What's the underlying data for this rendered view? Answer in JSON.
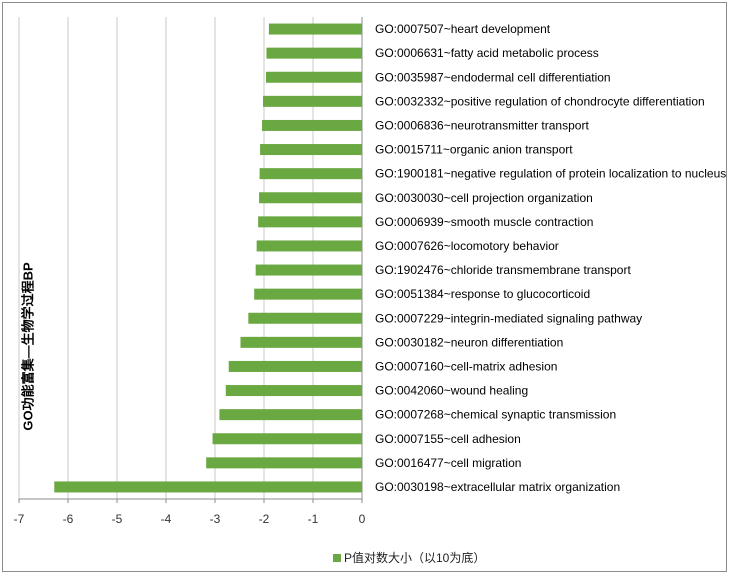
{
  "chart_data": {
    "type": "bar",
    "orientation": "horizontal",
    "ylabel": "GO功能富集—生物学过程BP",
    "xlabel": "",
    "xlim": [
      -7,
      0
    ],
    "xticks": [
      "-7",
      "-6",
      "-5",
      "-4",
      "-3",
      "-2",
      "-1",
      "0"
    ],
    "grid": true,
    "legend_position": "bottom",
    "series": [
      {
        "name": "P值对数大小（以10为底）",
        "color": "#6aa842"
      }
    ],
    "categories": [
      "GO:0007507~heart development",
      "GO:0006631~fatty acid metabolic process",
      "GO:0035987~endodermal cell differentiation",
      "GO:0032332~positive regulation of chondrocyte differentiation",
      "GO:0006836~neurotransmitter transport",
      "GO:0015711~organic anion transport",
      "GO:1900181~negative regulation of protein localization to nucleus",
      "GO:0030030~cell projection organization",
      "GO:0006939~smooth muscle contraction",
      "GO:0007626~locomotory behavior",
      "GO:1902476~chloride transmembrane transport",
      "GO:0051384~response to glucocorticoid",
      "GO:0007229~integrin-mediated signaling pathway",
      "GO:0030182~neuron differentiation",
      "GO:0007160~cell-matrix adhesion",
      "GO:0042060~wound healing",
      "GO:0007268~chemical synaptic transmission",
      "GO:0007155~cell adhesion",
      "GO:0016477~cell migration",
      "GO:0030198~extracellular matrix organization"
    ],
    "values": [
      -1.9,
      -1.95,
      -1.96,
      -2.02,
      -2.04,
      -2.08,
      -2.09,
      -2.1,
      -2.12,
      -2.15,
      -2.17,
      -2.2,
      -2.32,
      -2.48,
      -2.72,
      -2.78,
      -2.91,
      -3.05,
      -3.18,
      -6.28
    ]
  }
}
